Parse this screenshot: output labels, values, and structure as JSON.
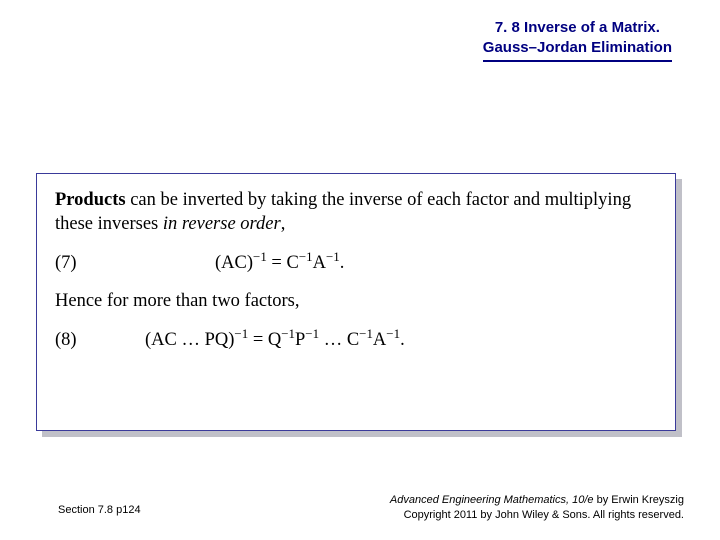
{
  "header": {
    "line1": "7. 8 Inverse of a Matrix.",
    "line2": "Gauss–Jordan Elimination",
    "color": "#000080",
    "fontsize": 15
  },
  "box": {
    "border_color": "#3a3a9a",
    "shadow_color": "#c0c0c8",
    "background": "#ffffff",
    "fontsize": 18.5,
    "para1_bold": "Products",
    "para1_rest": " can be inverted by taking the inverse of each factor and multiplying these inverses ",
    "para1_ital": "in reverse order",
    "para1_tail": ",",
    "eq7_num": "(7)",
    "eq7_lhs": "(AC)",
    "eq7_exp1": "−1",
    "eq7_eq": " = C",
    "eq7_exp2": "−1",
    "eq7_mid": "A",
    "eq7_exp3": "−1",
    "eq7_end": ".",
    "para2": "Hence for more than two factors,",
    "eq8_num": "(8)",
    "eq8_a": "(AC … PQ)",
    "eq8_e1": "−1",
    "eq8_b": " = Q",
    "eq8_e2": "−1",
    "eq8_c": "P",
    "eq8_e3": "−1",
    "eq8_d": " … C",
    "eq8_e4": "−1",
    "eq8_e": "A",
    "eq8_e5": "−1",
    "eq8_f": "."
  },
  "footer": {
    "left": "Section 7.8  p124",
    "right_title_ital": "Advanced Engineering Mathematics, 10/e",
    "right_title_rest": " by Erwin Kreyszig",
    "right_copy": "Copyright 2011 by John Wiley & Sons. All rights reserved.",
    "fontsize": 11
  }
}
